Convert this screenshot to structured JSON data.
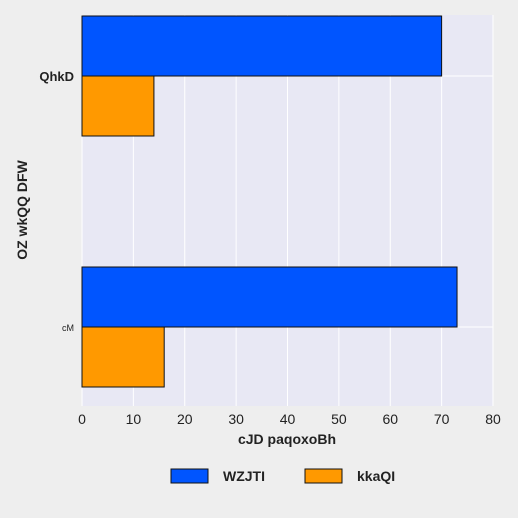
{
  "chart_data": {
    "type": "bar",
    "orientation": "horizontal",
    "categories": [
      "QhkD",
      "cM"
    ],
    "series": [
      {
        "name": "WZJTI",
        "values": [
          70,
          73
        ],
        "color": "#0055ff"
      },
      {
        "name": "kkaQI",
        "values": [
          14,
          16
        ],
        "color": "#ff9900"
      }
    ],
    "xlabel": "cJD paqoxoBh",
    "ylabel": "OZ wkQQ DFW",
    "xlim": [
      0,
      80
    ],
    "xticks": [
      "0",
      "10",
      "20",
      "30",
      "40",
      "50",
      "60",
      "70",
      "80"
    ],
    "grid": true,
    "legend_position": "bottom",
    "plot_background": "#e8e8f4",
    "grid_color": "#ffffff"
  }
}
